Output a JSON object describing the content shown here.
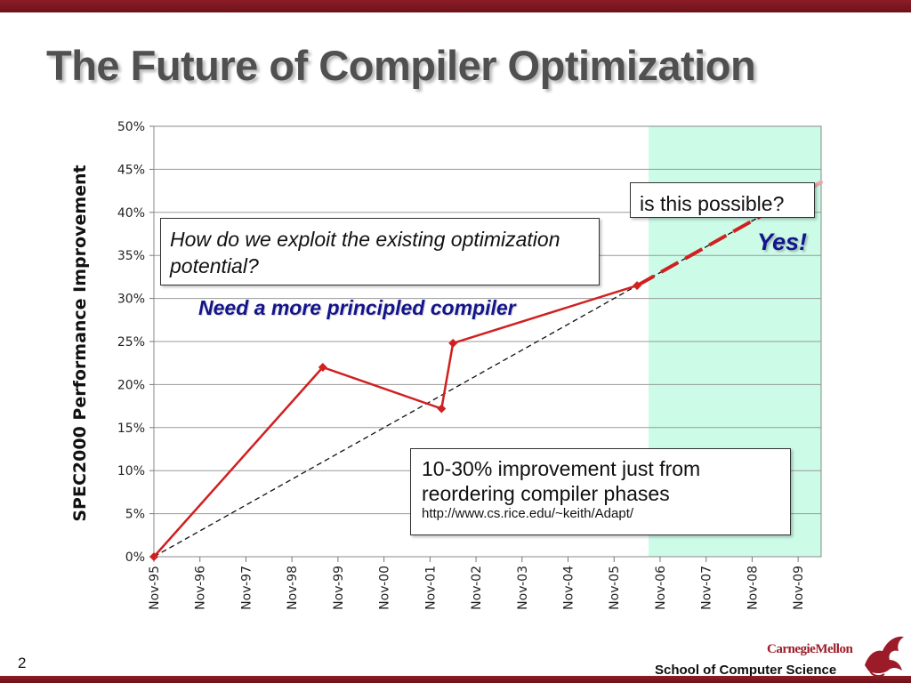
{
  "slide": {
    "title": "The Future of Compiler Optimization",
    "page_number": "2",
    "footer": "School of Computer Science",
    "logo_text": "CarnegieMellon",
    "colors": {
      "accent": "#8c1d26",
      "series": "#d0201f",
      "highlight": "#ccfbe8",
      "emphasis": "#14148c"
    }
  },
  "callouts": {
    "exploit": "How do we exploit the existing optimization potential?",
    "possible": "is this possible?",
    "improvement": "10-30% improvement just from reordering compiler phases",
    "improvement_url": "http://www.cs.rice.edu/~keith/Adapt/",
    "need": "Need a more principled compiler",
    "yes": "Yes!"
  },
  "chart_data": {
    "type": "line",
    "title": "",
    "xlabel": "",
    "ylabel": "SPEC2000 Performance Improvement",
    "categories": [
      "Nov-95",
      "Nov-96",
      "Nov-97",
      "Nov-98",
      "Nov-99",
      "Nov-00",
      "Nov-01",
      "Nov-02",
      "Nov-03",
      "Nov-04",
      "Nov-05",
      "Nov-06",
      "Nov-07",
      "Nov-08",
      "Nov-09"
    ],
    "y_ticks": [
      "0%",
      "5%",
      "10%",
      "15%",
      "20%",
      "25%",
      "30%",
      "35%",
      "40%",
      "45%",
      "50%"
    ],
    "ylim": [
      0,
      50
    ],
    "xlim": [
      0,
      14.5
    ],
    "grid": "horizontal",
    "series": [
      {
        "style": "solid-red-diamond",
        "points": [
          {
            "x": 0.0,
            "y": 0
          },
          {
            "x": 3.67,
            "y": 22
          },
          {
            "x": 6.25,
            "y": 17.2
          },
          {
            "x": 6.5,
            "y": 24.8
          },
          {
            "x": 10.5,
            "y": 31.5
          }
        ]
      },
      {
        "style": "red-dashed-projection",
        "points": [
          {
            "x": 10.5,
            "y": 31.5
          },
          {
            "x": 14.5,
            "y": 43.5
          }
        ]
      },
      {
        "style": "black-dashed-trend",
        "points": [
          {
            "x": 0.0,
            "y": 0
          },
          {
            "x": 14.5,
            "y": 43.5
          }
        ]
      }
    ],
    "highlight_region": {
      "x_from": 10.75,
      "x_to": 14.5
    }
  }
}
